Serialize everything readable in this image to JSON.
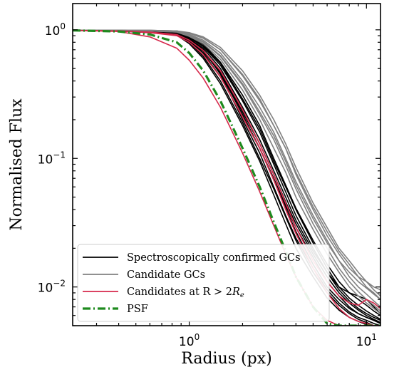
{
  "chart_data": {
    "type": "line",
    "xscale": "log",
    "yscale": "log",
    "xlim": [
      0.22,
      12
    ],
    "ylim": [
      0.005,
      1.6
    ],
    "xlabel": "Radius (px)",
    "ylabel": "Normalised Flux",
    "grid": false,
    "legend_position": "lower-left",
    "x_tick_labels": [
      {
        "value": 1,
        "base": "10",
        "exp": "0"
      },
      {
        "value": 10,
        "base": "10",
        "exp": "1"
      }
    ],
    "y_tick_labels": [
      {
        "value": 1,
        "base": "10",
        "exp": "0"
      },
      {
        "value": 0.1,
        "base": "10",
        "exp": "−1"
      },
      {
        "value": 0.01,
        "base": "10",
        "exp": "−2"
      }
    ],
    "legend": [
      {
        "label": "Spectroscopically confirmed GCs",
        "color": "#000000",
        "style": "solid"
      },
      {
        "label": "Candidate GCs",
        "color": "#808080",
        "style": "solid"
      },
      {
        "label_main": "Candidates at R > 2",
        "label_italic": "R",
        "label_sub": "e",
        "color": "#d6284b",
        "style": "solid"
      },
      {
        "label": "PSF",
        "color": "#1e8a1e",
        "style": "dashdot"
      }
    ],
    "x": [
      0.22,
      0.4,
      0.6,
      0.85,
      1.0,
      1.2,
      1.5,
      2.0,
      2.5,
      3.0,
      3.5,
      4.0,
      5.0,
      6.0,
      7.0,
      8.0,
      9.0,
      10.0,
      11.0,
      12.0
    ],
    "series": [
      {
        "group": "Spectroscopically confirmed GCs",
        "color": "#000000",
        "values": [
          0.99,
          0.99,
          0.98,
          0.96,
          0.86,
          0.7,
          0.45,
          0.2,
          0.11,
          0.06,
          0.036,
          0.024,
          0.014,
          0.0095,
          0.0075,
          0.0064,
          0.0058,
          0.0055,
          0.0052,
          0.005
        ]
      },
      {
        "group": "Spectroscopically confirmed GCs",
        "color": "#000000",
        "values": [
          0.99,
          0.98,
          0.96,
          0.93,
          0.82,
          0.66,
          0.43,
          0.21,
          0.12,
          0.07,
          0.043,
          0.029,
          0.017,
          0.011,
          0.0085,
          0.007,
          0.0062,
          0.0058,
          0.0055,
          0.0052
        ]
      },
      {
        "group": "Spectroscopically confirmed GCs",
        "color": "#000000",
        "values": [
          0.99,
          0.99,
          0.97,
          0.95,
          0.87,
          0.74,
          0.53,
          0.28,
          0.16,
          0.09,
          0.055,
          0.036,
          0.02,
          0.013,
          0.0095,
          0.0078,
          0.0068,
          0.0062,
          0.0058,
          0.0055
        ]
      },
      {
        "group": "Spectroscopically confirmed GCs",
        "color": "#000000",
        "values": [
          0.99,
          0.98,
          0.95,
          0.92,
          0.8,
          0.62,
          0.4,
          0.19,
          0.1,
          0.058,
          0.035,
          0.023,
          0.013,
          0.009,
          0.0072,
          0.0062,
          0.0056,
          0.0053,
          0.005,
          0.005
        ]
      },
      {
        "group": "Spectroscopically confirmed GCs",
        "color": "#000000",
        "values": [
          0.99,
          0.99,
          0.98,
          0.96,
          0.89,
          0.77,
          0.56,
          0.31,
          0.18,
          0.1,
          0.062,
          0.041,
          0.023,
          0.015,
          0.011,
          0.009,
          0.008,
          0.0072,
          0.0065,
          0.006
        ]
      },
      {
        "group": "Spectroscopically confirmed GCs",
        "color": "#000000",
        "values": [
          0.99,
          0.98,
          0.96,
          0.93,
          0.84,
          0.69,
          0.47,
          0.23,
          0.13,
          0.075,
          0.046,
          0.031,
          0.018,
          0.012,
          0.009,
          0.0075,
          0.0066,
          0.006,
          0.0056,
          0.0053
        ]
      },
      {
        "group": "Spectroscopically confirmed GCs",
        "color": "#000000",
        "values": [
          0.99,
          0.98,
          0.95,
          0.91,
          0.78,
          0.6,
          0.38,
          0.18,
          0.095,
          0.052,
          0.031,
          0.02,
          0.012,
          0.0082,
          0.0066,
          0.0058,
          0.0054,
          0.0051,
          0.005,
          0.005
        ]
      },
      {
        "group": "Spectroscopically confirmed GCs",
        "color": "#000000",
        "values": [
          0.99,
          0.99,
          0.97,
          0.95,
          0.88,
          0.75,
          0.55,
          0.29,
          0.17,
          0.095,
          0.06,
          0.04,
          0.022,
          0.014,
          0.01,
          0.0082,
          0.0072,
          0.0065,
          0.006,
          0.0056
        ]
      },
      {
        "group": "Spectroscopically confirmed GCs",
        "color": "#000000",
        "values": [
          0.99,
          0.98,
          0.96,
          0.94,
          0.85,
          0.72,
          0.5,
          0.25,
          0.14,
          0.08,
          0.05,
          0.033,
          0.019,
          0.013,
          0.01,
          0.009,
          0.0085,
          0.008,
          0.007,
          0.0062
        ]
      },
      {
        "group": "Spectroscopically confirmed GCs",
        "color": "#000000",
        "values": [
          0.99,
          0.98,
          0.96,
          0.93,
          0.83,
          0.68,
          0.46,
          0.22,
          0.12,
          0.068,
          0.041,
          0.027,
          0.015,
          0.01,
          0.008,
          0.0068,
          0.0062,
          0.0058,
          0.0055,
          0.0052
        ]
      },
      {
        "group": "Candidate GCs",
        "color": "#808080",
        "values": [
          0.99,
          0.99,
          0.99,
          0.98,
          0.94,
          0.86,
          0.7,
          0.45,
          0.29,
          0.18,
          0.12,
          0.078,
          0.042,
          0.027,
          0.019,
          0.015,
          0.012,
          0.01,
          0.009,
          0.008
        ]
      },
      {
        "group": "Candidate GCs",
        "color": "#808080",
        "values": [
          0.99,
          0.99,
          0.98,
          0.97,
          0.92,
          0.83,
          0.66,
          0.4,
          0.25,
          0.16,
          0.1,
          0.066,
          0.036,
          0.023,
          0.016,
          0.012,
          0.01,
          0.0088,
          0.0078,
          0.007
        ]
      },
      {
        "group": "Candidate GCs",
        "color": "#808080",
        "values": [
          0.99,
          0.99,
          0.98,
          0.96,
          0.9,
          0.8,
          0.62,
          0.37,
          0.22,
          0.14,
          0.088,
          0.058,
          0.031,
          0.02,
          0.014,
          0.011,
          0.0092,
          0.008,
          0.0072,
          0.0065
        ]
      },
      {
        "group": "Candidate GCs",
        "color": "#808080",
        "values": [
          0.99,
          0.99,
          0.99,
          0.98,
          0.95,
          0.88,
          0.73,
          0.48,
          0.31,
          0.2,
          0.13,
          0.085,
          0.045,
          0.029,
          0.02,
          0.016,
          0.013,
          0.011,
          0.0095,
          0.0085
        ]
      },
      {
        "group": "Candidate GCs",
        "color": "#808080",
        "values": [
          0.99,
          0.99,
          0.98,
          0.97,
          0.91,
          0.81,
          0.63,
          0.38,
          0.23,
          0.15,
          0.095,
          0.062,
          0.034,
          0.022,
          0.016,
          0.013,
          0.011,
          0.0098,
          0.0088,
          0.008
        ]
      },
      {
        "group": "Candidate GCs",
        "color": "#808080",
        "values": [
          0.99,
          0.99,
          0.98,
          0.96,
          0.89,
          0.78,
          0.59,
          0.34,
          0.2,
          0.12,
          0.078,
          0.05,
          0.028,
          0.018,
          0.013,
          0.01,
          0.0085,
          0.0075,
          0.0068,
          0.0062
        ]
      },
      {
        "group": "Candidate GCs",
        "color": "#808080",
        "values": [
          0.99,
          0.99,
          0.99,
          0.98,
          0.94,
          0.86,
          0.7,
          0.44,
          0.28,
          0.18,
          0.12,
          0.075,
          0.04,
          0.025,
          0.018,
          0.014,
          0.012,
          0.011,
          0.01,
          0.0095
        ]
      },
      {
        "group": "Candidates at R > 2R_e",
        "color": "#d6284b",
        "values": [
          0.99,
          0.97,
          0.88,
          0.72,
          0.58,
          0.42,
          0.25,
          0.11,
          0.055,
          0.03,
          0.018,
          0.012,
          0.007,
          0.0055,
          0.005,
          0.005,
          0.005,
          0.005,
          0.005,
          0.005
        ]
      },
      {
        "group": "Candidates at R > 2R_e",
        "color": "#d6284b",
        "values": [
          0.99,
          0.98,
          0.95,
          0.9,
          0.8,
          0.64,
          0.43,
          0.21,
          0.12,
          0.068,
          0.04,
          0.026,
          0.014,
          0.009,
          0.0068,
          0.0058,
          0.0054,
          0.0052,
          0.005,
          0.005
        ]
      },
      {
        "group": "Candidates at R > 2R_e",
        "color": "#d6284b",
        "values": [
          0.99,
          0.98,
          0.96,
          0.92,
          0.83,
          0.69,
          0.48,
          0.24,
          0.13,
          0.075,
          0.045,
          0.029,
          0.016,
          0.011,
          0.0085,
          0.0075,
          0.0072,
          0.008,
          0.0075,
          0.0068
        ]
      },
      {
        "group": "PSF",
        "color": "#1e8a1e",
        "dashed": true,
        "values": [
          0.99,
          0.97,
          0.92,
          0.8,
          0.66,
          0.48,
          0.28,
          0.12,
          0.06,
          0.032,
          0.019,
          0.012,
          0.007,
          0.0052,
          0.005,
          0.005,
          0.005,
          0.005,
          0.005,
          0.005
        ]
      }
    ]
  }
}
